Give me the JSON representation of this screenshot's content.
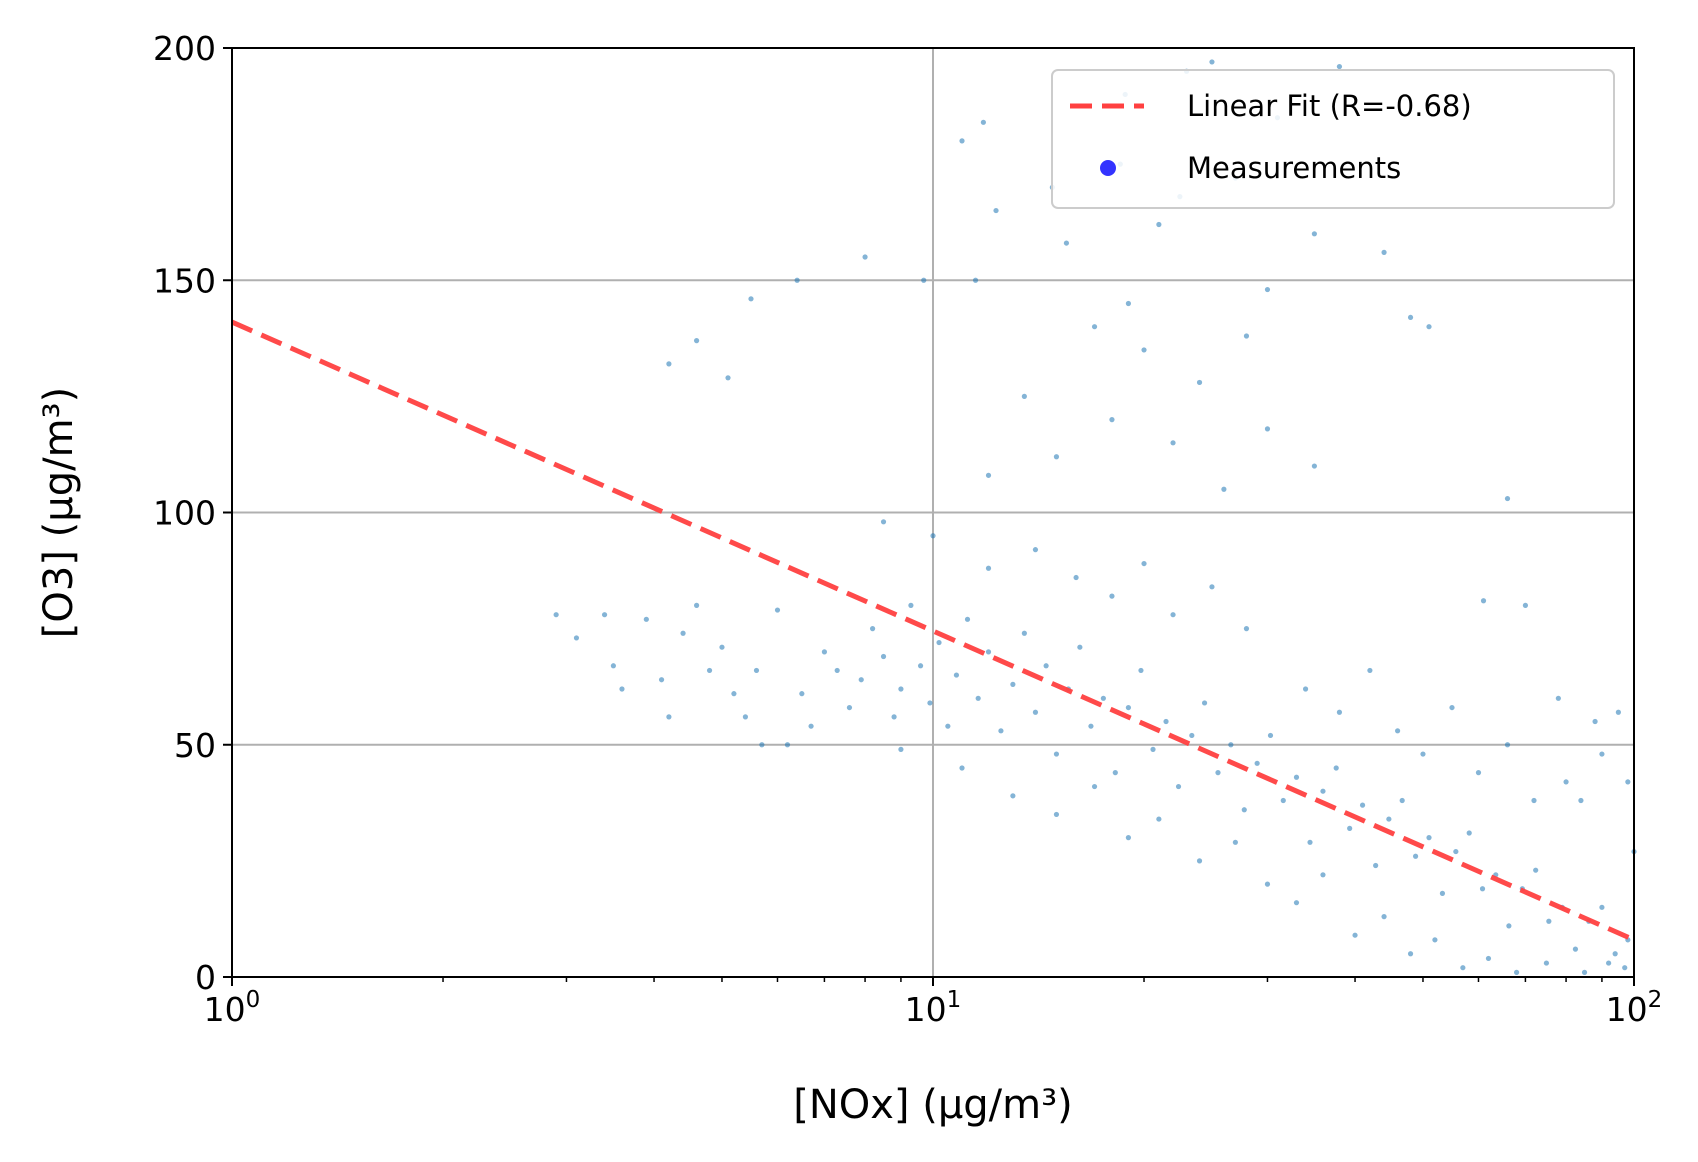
{
  "chart_data": {
    "type": "scatter",
    "title": "",
    "xlabel": "[NOx] (μg/m³)",
    "ylabel": "[O3] (μg/m³)",
    "xscale": "log",
    "xlim": [
      1,
      100
    ],
    "ylim": [
      0,
      200
    ],
    "grid": true,
    "legend_position": "top-right",
    "x_ticks": [
      {
        "value": 1,
        "base": "10",
        "exp": "0"
      },
      {
        "value": 10,
        "base": "10",
        "exp": "1"
      },
      {
        "value": 100,
        "base": "10",
        "exp": "2"
      }
    ],
    "y_ticks": [
      {
        "value": 0,
        "label": "0"
      },
      {
        "value": 50,
        "label": "50"
      },
      {
        "value": 100,
        "label": "100"
      },
      {
        "value": 150,
        "label": "150"
      },
      {
        "value": 200,
        "label": "200"
      }
    ],
    "series": [
      {
        "name": "Measurements",
        "kind": "scatter",
        "color": "#1f77b4",
        "legend_marker_color": "#0000ff",
        "points": [
          [
            2.9,
            78
          ],
          [
            3.1,
            73
          ],
          [
            3.4,
            78
          ],
          [
            3.5,
            67
          ],
          [
            3.6,
            62
          ],
          [
            3.9,
            77
          ],
          [
            4.1,
            64
          ],
          [
            4.2,
            56
          ],
          [
            4.4,
            74
          ],
          [
            4.6,
            80
          ],
          [
            4.8,
            66
          ],
          [
            5.0,
            71
          ],
          [
            5.2,
            61
          ],
          [
            5.4,
            56
          ],
          [
            5.6,
            66
          ],
          [
            5.7,
            50
          ],
          [
            6.0,
            79
          ],
          [
            6.2,
            50
          ],
          [
            6.5,
            61
          ],
          [
            6.7,
            54
          ],
          [
            7.0,
            70
          ],
          [
            7.3,
            66
          ],
          [
            7.6,
            58
          ],
          [
            7.9,
            64
          ],
          [
            8.2,
            75
          ],
          [
            8.5,
            69
          ],
          [
            8.8,
            56
          ],
          [
            9.0,
            62
          ],
          [
            9.3,
            80
          ],
          [
            9.6,
            67
          ],
          [
            9.9,
            59
          ],
          [
            10.2,
            72
          ],
          [
            10.5,
            54
          ],
          [
            10.8,
            65
          ],
          [
            11.2,
            77
          ],
          [
            11.6,
            60
          ],
          [
            12.0,
            70
          ],
          [
            12.5,
            53
          ],
          [
            13.0,
            63
          ],
          [
            13.5,
            74
          ],
          [
            14.0,
            57
          ],
          [
            14.5,
            67
          ],
          [
            15.0,
            48
          ],
          [
            15.6,
            62
          ],
          [
            16.2,
            71
          ],
          [
            16.8,
            54
          ],
          [
            17.5,
            60
          ],
          [
            18.2,
            44
          ],
          [
            19.0,
            58
          ],
          [
            19.8,
            66
          ],
          [
            20.6,
            49
          ],
          [
            21.5,
            55
          ],
          [
            22.4,
            41
          ],
          [
            23.4,
            52
          ],
          [
            24.4,
            59
          ],
          [
            25.5,
            44
          ],
          [
            26.6,
            50
          ],
          [
            27.8,
            36
          ],
          [
            29.0,
            46
          ],
          [
            30.3,
            52
          ],
          [
            31.6,
            38
          ],
          [
            33.0,
            43
          ],
          [
            34.5,
            29
          ],
          [
            36.0,
            40
          ],
          [
            37.6,
            45
          ],
          [
            39.3,
            32
          ],
          [
            41.0,
            37
          ],
          [
            42.8,
            24
          ],
          [
            44.7,
            34
          ],
          [
            46.7,
            38
          ],
          [
            48.8,
            26
          ],
          [
            51.0,
            30
          ],
          [
            53.3,
            18
          ],
          [
            55.7,
            27
          ],
          [
            58.2,
            31
          ],
          [
            60.8,
            19
          ],
          [
            63.5,
            22
          ],
          [
            66.3,
            11
          ],
          [
            69.3,
            19
          ],
          [
            72.4,
            23
          ],
          [
            75.6,
            12
          ],
          [
            79.0,
            15
          ],
          [
            82.5,
            6
          ],
          [
            86.2,
            12
          ],
          [
            90.0,
            15
          ],
          [
            94.0,
            5
          ],
          [
            98.0,
            8
          ],
          [
            97.0,
            2
          ],
          [
            92.0,
            3
          ],
          [
            85.0,
            1
          ],
          [
            8.5,
            98
          ],
          [
            10.0,
            95
          ],
          [
            12.0,
            88
          ],
          [
            14.0,
            92
          ],
          [
            16.0,
            86
          ],
          [
            18.0,
            82
          ],
          [
            20.0,
            89
          ],
          [
            22.0,
            78
          ],
          [
            25.0,
            84
          ],
          [
            28.0,
            75
          ],
          [
            9.0,
            49
          ],
          [
            11.0,
            45
          ],
          [
            13.0,
            39
          ],
          [
            15.0,
            35
          ],
          [
            17.0,
            41
          ],
          [
            19.0,
            30
          ],
          [
            21.0,
            34
          ],
          [
            24.0,
            25
          ],
          [
            27.0,
            29
          ],
          [
            30.0,
            20
          ],
          [
            33.0,
            16
          ],
          [
            36.0,
            22
          ],
          [
            40.0,
            9
          ],
          [
            44.0,
            13
          ],
          [
            48.0,
            5
          ],
          [
            52.0,
            8
          ],
          [
            57.0,
            2
          ],
          [
            62.0,
            4
          ],
          [
            68.0,
            1
          ],
          [
            75.0,
            3
          ],
          [
            34.0,
            62
          ],
          [
            38.0,
            57
          ],
          [
            42.0,
            66
          ],
          [
            46.0,
            53
          ],
          [
            50.0,
            48
          ],
          [
            55.0,
            58
          ],
          [
            60.0,
            44
          ],
          [
            66.0,
            50
          ],
          [
            72.0,
            38
          ],
          [
            80.0,
            42
          ],
          [
            12.0,
            108
          ],
          [
            15.0,
            112
          ],
          [
            18.0,
            120
          ],
          [
            22.0,
            115
          ],
          [
            26.0,
            105
          ],
          [
            30.0,
            118
          ],
          [
            35.0,
            110
          ],
          [
            13.5,
            125
          ],
          [
            20.0,
            135
          ],
          [
            24.0,
            128
          ],
          [
            17.0,
            140
          ],
          [
            19.0,
            145
          ],
          [
            28.0,
            138
          ],
          [
            11.5,
            150
          ],
          [
            15.5,
            158
          ],
          [
            21.0,
            162
          ],
          [
            30.0,
            148
          ],
          [
            44.0,
            156
          ],
          [
            48.0,
            142
          ],
          [
            51.0,
            140
          ],
          [
            8.0,
            155
          ],
          [
            9.7,
            150
          ],
          [
            12.3,
            165
          ],
          [
            14.8,
            170
          ],
          [
            18.5,
            175
          ],
          [
            22.5,
            168
          ],
          [
            27.0,
            172
          ],
          [
            35.0,
            160
          ],
          [
            11.0,
            180
          ],
          [
            11.8,
            184
          ],
          [
            18.8,
            190
          ],
          [
            23.0,
            195
          ],
          [
            31.0,
            185
          ],
          [
            38.0,
            196
          ],
          [
            25.0,
            197
          ],
          [
            5.5,
            146
          ],
          [
            4.6,
            137
          ],
          [
            4.2,
            132
          ],
          [
            5.1,
            129
          ],
          [
            6.4,
            150
          ],
          [
            66.0,
            103
          ],
          [
            61.0,
            81
          ],
          [
            70.0,
            80
          ],
          [
            95.0,
            57
          ],
          [
            90.0,
            48
          ],
          [
            84.0,
            38
          ],
          [
            78.0,
            60
          ],
          [
            100.0,
            27
          ],
          [
            98.0,
            42
          ],
          [
            88.0,
            55
          ]
        ]
      },
      {
        "name": "Linear Fit (R=-0.68)",
        "kind": "line",
        "style": "dashed",
        "color": "#ff4040",
        "x": [
          1,
          100
        ],
        "y": [
          141,
          8
        ]
      }
    ]
  }
}
